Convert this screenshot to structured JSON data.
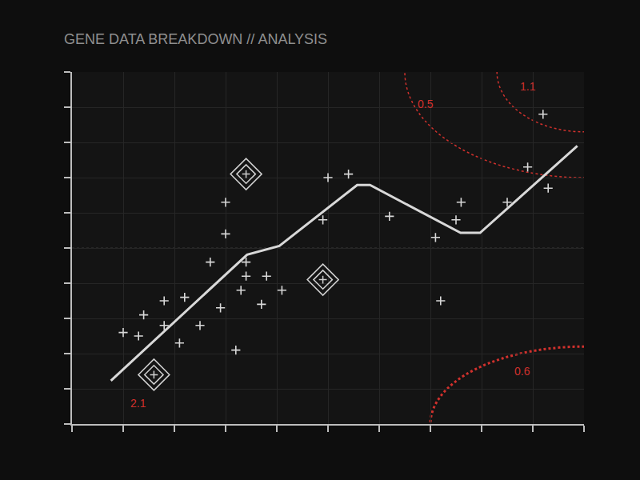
{
  "chart_data": {
    "type": "line",
    "title": "GENE DATA BREAKDOWN // ANALYSIS",
    "xlim": [
      0,
      10
    ],
    "ylim": [
      0,
      10
    ],
    "xticks": [
      0,
      1,
      2,
      3,
      4,
      5,
      6,
      7,
      8,
      9,
      10
    ],
    "yticks": [
      0,
      1,
      2,
      3,
      4,
      5,
      6,
      7,
      8,
      9,
      10
    ],
    "grid": true,
    "tick_labels": false,
    "series": [
      {
        "type": "line",
        "color": "#d8d8d8",
        "x": [
          0.76,
          3.42,
          4.05,
          5.57,
          5.82,
          7.59,
          7.97,
          9.87
        ],
        "values": [
          1.23,
          4.81,
          5.06,
          6.79,
          6.79,
          5.43,
          5.43,
          7.9
        ]
      },
      {
        "type": "scatter",
        "marker": "cross",
        "color": "#d8d8d8",
        "x": [
          5.4,
          5.0,
          3.0,
          4.9,
          6.2,
          7.6,
          3.0,
          2.7,
          3.4,
          3.8,
          3.4,
          4.1,
          3.3,
          2.2,
          2.9,
          3.7,
          1.8,
          1.4,
          1.8,
          2.5,
          1.0,
          1.3,
          2.1,
          3.2,
          7.2,
          8.9,
          9.3,
          8.5,
          7.5,
          7.1,
          9.2
        ],
        "values": [
          7.1,
          7.0,
          6.3,
          5.8,
          5.9,
          6.3,
          5.4,
          4.6,
          4.6,
          4.2,
          4.2,
          3.8,
          3.8,
          3.6,
          3.3,
          3.4,
          3.5,
          3.1,
          2.8,
          2.8,
          2.6,
          2.5,
          2.3,
          2.1,
          3.5,
          7.3,
          6.7,
          6.3,
          5.8,
          5.3,
          8.8
        ]
      },
      {
        "type": "scatter",
        "marker": "diamond",
        "color": "#cfcfcf",
        "x": [
          3.4,
          4.9,
          1.6
        ],
        "values": [
          7.1,
          4.1,
          1.4
        ]
      }
    ],
    "annotations": [
      {
        "text": "0.5",
        "x": 6.9,
        "y": 9.1,
        "color": "#d0312d"
      },
      {
        "text": "1.1",
        "x": 8.9,
        "y": 9.6,
        "color": "#d0312d"
      },
      {
        "text": "2.1",
        "x": 1.3,
        "y": 0.6,
        "color": "#d0312d"
      },
      {
        "text": "0.6",
        "x": 8.8,
        "y": 1.5,
        "color": "#d0312d"
      }
    ]
  }
}
